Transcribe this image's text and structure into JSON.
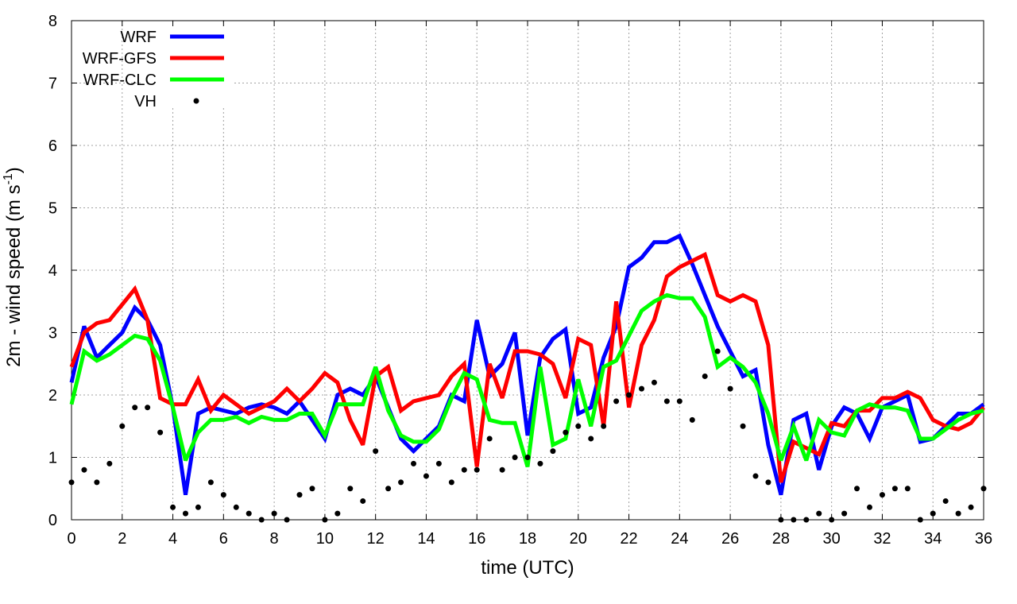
{
  "chart_data": {
    "type": "line",
    "xlabel": "time (UTC)",
    "ylabel_main": "2m - wind speed  (m s",
    "ylabel_sup": "-1",
    "ylabel_close": ")",
    "xlim": [
      0,
      36
    ],
    "ylim": [
      0,
      8
    ],
    "x_ticks": [
      0,
      2,
      4,
      6,
      8,
      10,
      12,
      14,
      16,
      18,
      20,
      22,
      24,
      26,
      28,
      30,
      32,
      34,
      36
    ],
    "y_ticks": [
      0,
      1,
      2,
      3,
      4,
      5,
      6,
      7,
      8
    ],
    "grid": true,
    "legend_position": "top-left",
    "series": [
      {
        "name": "WRF",
        "color": "#0000ff",
        "style": "line",
        "x": [
          0,
          0.5,
          1,
          1.5,
          2,
          2.5,
          3,
          3.5,
          4,
          4.5,
          5,
          5.5,
          6,
          6.5,
          7,
          7.5,
          8,
          8.5,
          9,
          9.5,
          10,
          10.5,
          11,
          11.5,
          12,
          12.5,
          13,
          13.5,
          14,
          14.5,
          15,
          15.5,
          16,
          16.5,
          17,
          17.5,
          18,
          18.5,
          19,
          19.5,
          20,
          20.5,
          21,
          21.5,
          22,
          22.5,
          23,
          23.5,
          24,
          24.5,
          25,
          25.5,
          26,
          26.5,
          27,
          27.5,
          28,
          28.5,
          29,
          29.5,
          30,
          30.5,
          31,
          31.5,
          32,
          32.5,
          33,
          33.5,
          34,
          34.5,
          35,
          35.5,
          36
        ],
        "values": [
          2.2,
          3.1,
          2.6,
          2.8,
          3.0,
          3.4,
          3.2,
          2.8,
          1.8,
          0.4,
          1.7,
          1.8,
          1.75,
          1.7,
          1.8,
          1.85,
          1.8,
          1.7,
          1.9,
          1.6,
          1.3,
          2.0,
          2.1,
          2.0,
          2.3,
          1.8,
          1.3,
          1.1,
          1.3,
          1.5,
          2.0,
          1.9,
          3.2,
          2.3,
          2.5,
          3.0,
          1.35,
          2.6,
          2.9,
          3.05,
          1.7,
          1.8,
          2.6,
          3.1,
          4.05,
          4.2,
          4.45,
          4.45,
          4.55,
          4.1,
          3.6,
          3.1,
          2.7,
          2.3,
          2.4,
          1.2,
          0.4,
          1.6,
          1.7,
          0.8,
          1.5,
          1.8,
          1.7,
          1.3,
          1.8,
          1.9,
          2.0,
          1.25,
          1.3,
          1.5,
          1.7,
          1.7,
          1.85
        ]
      },
      {
        "name": "WRF-GFS",
        "color": "#ff0000",
        "style": "line",
        "x": [
          0,
          0.5,
          1,
          1.5,
          2,
          2.5,
          3,
          3.5,
          4,
          4.5,
          5,
          5.5,
          6,
          6.5,
          7,
          7.5,
          8,
          8.5,
          9,
          9.5,
          10,
          10.5,
          11,
          11.5,
          12,
          12.5,
          13,
          13.5,
          14,
          14.5,
          15,
          15.5,
          16,
          16.5,
          17,
          17.5,
          18,
          18.5,
          19,
          19.5,
          20,
          20.5,
          21,
          21.5,
          22,
          22.5,
          23,
          23.5,
          24,
          24.5,
          25,
          25.5,
          26,
          26.5,
          27,
          27.5,
          28,
          28.5,
          29,
          29.5,
          30,
          30.5,
          31,
          31.5,
          32,
          32.5,
          33,
          33.5,
          34,
          34.5,
          35,
          35.5,
          36
        ],
        "values": [
          2.45,
          3.0,
          3.15,
          3.2,
          3.45,
          3.7,
          3.2,
          1.95,
          1.85,
          1.85,
          2.25,
          1.75,
          2.0,
          1.85,
          1.7,
          1.8,
          1.9,
          2.1,
          1.9,
          2.1,
          2.35,
          2.2,
          1.6,
          1.2,
          2.3,
          2.45,
          1.75,
          1.9,
          1.95,
          2.0,
          2.3,
          2.5,
          0.85,
          2.5,
          1.95,
          2.7,
          2.7,
          2.65,
          2.5,
          1.95,
          2.9,
          2.8,
          1.5,
          3.5,
          1.8,
          2.8,
          3.2,
          3.9,
          4.05,
          4.15,
          4.25,
          3.6,
          3.5,
          3.6,
          3.5,
          2.8,
          0.6,
          1.25,
          1.15,
          1.05,
          1.55,
          1.5,
          1.75,
          1.75,
          1.95,
          1.95,
          2.05,
          1.95,
          1.6,
          1.5,
          1.45,
          1.55,
          1.8
        ]
      },
      {
        "name": "WRF-CLC",
        "color": "#00ff00",
        "style": "line",
        "x": [
          0,
          0.5,
          1,
          1.5,
          2,
          2.5,
          3,
          3.5,
          4,
          4.5,
          5,
          5.5,
          6,
          6.5,
          7,
          7.5,
          8,
          8.5,
          9,
          9.5,
          10,
          10.5,
          11,
          11.5,
          12,
          12.5,
          13,
          13.5,
          14,
          14.5,
          15,
          15.5,
          16,
          16.5,
          17,
          17.5,
          18,
          18.5,
          19,
          19.5,
          20,
          20.5,
          21,
          21.5,
          22,
          22.5,
          23,
          23.5,
          24,
          24.5,
          25,
          25.5,
          26,
          26.5,
          27,
          27.5,
          28,
          28.5,
          29,
          29.5,
          30,
          30.5,
          31,
          31.5,
          32,
          32.5,
          33,
          33.5,
          34,
          34.5,
          35,
          35.5,
          36
        ],
        "values": [
          1.85,
          2.7,
          2.55,
          2.65,
          2.8,
          2.95,
          2.9,
          2.55,
          1.8,
          0.95,
          1.4,
          1.6,
          1.6,
          1.65,
          1.55,
          1.65,
          1.6,
          1.6,
          1.7,
          1.7,
          1.35,
          1.85,
          1.85,
          1.85,
          2.45,
          1.75,
          1.35,
          1.25,
          1.25,
          1.45,
          1.95,
          2.35,
          2.25,
          1.6,
          1.55,
          1.55,
          0.85,
          2.45,
          1.2,
          1.3,
          2.25,
          1.5,
          2.45,
          2.55,
          2.95,
          3.35,
          3.5,
          3.6,
          3.55,
          3.55,
          3.25,
          2.45,
          2.6,
          2.45,
          2.2,
          1.7,
          0.95,
          1.5,
          0.95,
          1.6,
          1.4,
          1.35,
          1.75,
          1.85,
          1.8,
          1.8,
          1.75,
          1.3,
          1.3,
          1.45,
          1.6,
          1.7,
          1.75
        ]
      },
      {
        "name": "VH",
        "color": "#000000",
        "style": "points",
        "x": [
          0,
          0.5,
          1,
          1.5,
          2,
          2.5,
          3,
          3.5,
          4,
          4.5,
          5,
          5.5,
          6,
          6.5,
          7,
          7.5,
          8,
          8.5,
          9,
          9.5,
          10,
          10.5,
          11,
          11.5,
          12,
          12.5,
          13,
          13.5,
          14,
          14.5,
          15,
          15.5,
          16,
          16.5,
          17,
          17.5,
          18,
          18.5,
          19,
          19.5,
          20,
          20.5,
          21,
          21.5,
          22,
          22.5,
          23,
          23.5,
          24,
          24.5,
          25,
          25.5,
          26,
          26.5,
          27,
          27.5,
          28,
          28.5,
          29,
          29.5,
          30,
          30.5,
          31,
          31.5,
          32,
          32.5,
          33,
          33.5,
          34,
          34.5,
          35,
          35.5,
          36
        ],
        "values": [
          0.6,
          0.8,
          0.6,
          0.9,
          1.5,
          1.8,
          1.8,
          1.4,
          0.2,
          0.1,
          0.2,
          0.6,
          0.4,
          0.2,
          0.1,
          0.0,
          0.1,
          0.0,
          0.4,
          0.5,
          0.0,
          0.1,
          0.5,
          0.3,
          1.1,
          0.5,
          0.6,
          0.9,
          0.7,
          0.9,
          0.6,
          0.8,
          0.8,
          1.3,
          0.8,
          1.0,
          1.0,
          0.9,
          1.1,
          1.4,
          1.5,
          1.3,
          1.5,
          1.9,
          2.0,
          2.1,
          2.2,
          1.9,
          1.9,
          1.6,
          2.3,
          2.7,
          2.1,
          1.5,
          0.7,
          0.6,
          0.0,
          0.0,
          0.0,
          0.1,
          0.0,
          0.1,
          0.5,
          0.2,
          0.4,
          0.5,
          0.5,
          0.0,
          0.1,
          0.3,
          0.1,
          0.2,
          0.5
        ]
      }
    ]
  }
}
